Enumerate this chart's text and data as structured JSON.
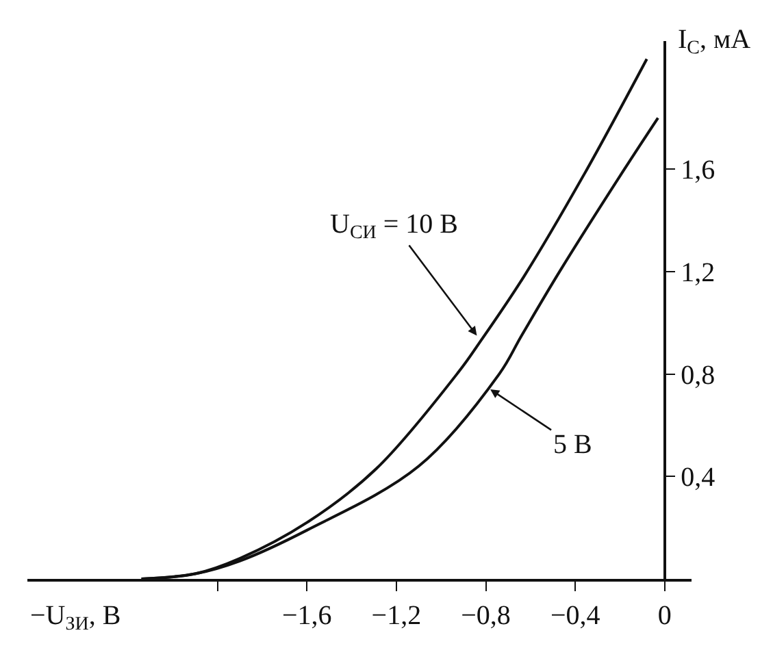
{
  "chart_data": {
    "type": "line",
    "xlabel": "−U$_{ЗИ}$, В",
    "ylabel": "I$_{С}$, мА",
    "series": [
      {
        "color": "#111111",
        "x": [
          -2.34,
          -2.1,
          -1.9,
          -1.6,
          -1.29,
          -0.92,
          -0.83,
          -0.63,
          -0.36,
          -0.08
        ],
        "values": [
          0,
          0.02,
          0.08,
          0.22,
          0.43,
          0.81,
          0.92,
          1.18,
          1.58,
          2.03
        ]
      },
      {
        "color": "#111111",
        "x": [
          -2.34,
          -2.1,
          -1.9,
          -1.6,
          -1.1,
          -0.74,
          -0.64,
          -0.47,
          -0.18,
          -0.03
        ],
        "values": [
          0,
          0.02,
          0.07,
          0.19,
          0.44,
          0.8,
          0.95,
          1.2,
          1.6,
          1.8
        ]
      }
    ],
    "annotations": [
      {
        "text": "U$_{СИ}$ = 10 В",
        "x": -0.84,
        "y": 0.95
      },
      {
        "text": "5 В",
        "x": -0.78,
        "y": 0.74
      }
    ],
    "xlim": [
      -2.85,
      0.12
    ],
    "ylim": [
      0,
      2.1
    ],
    "xticks": [
      {
        "value": -2.0,
        "label": null
      },
      {
        "value": -1.6,
        "label": "−1,6"
      },
      {
        "value": -1.2,
        "label": "−1,2"
      },
      {
        "value": -0.8,
        "label": "−0,8"
      },
      {
        "value": -0.4,
        "label": "−0,4"
      },
      0
    ],
    "yticks": [
      {
        "value": 0.4,
        "label": "0,4"
      },
      {
        "value": 0.8,
        "label": "0,8"
      },
      {
        "value": 1.2,
        "label": "1,2"
      },
      {
        "value": 1.6,
        "label": "1,6"
      }
    ],
    "marker": "none",
    "line_style": "solid"
  }
}
